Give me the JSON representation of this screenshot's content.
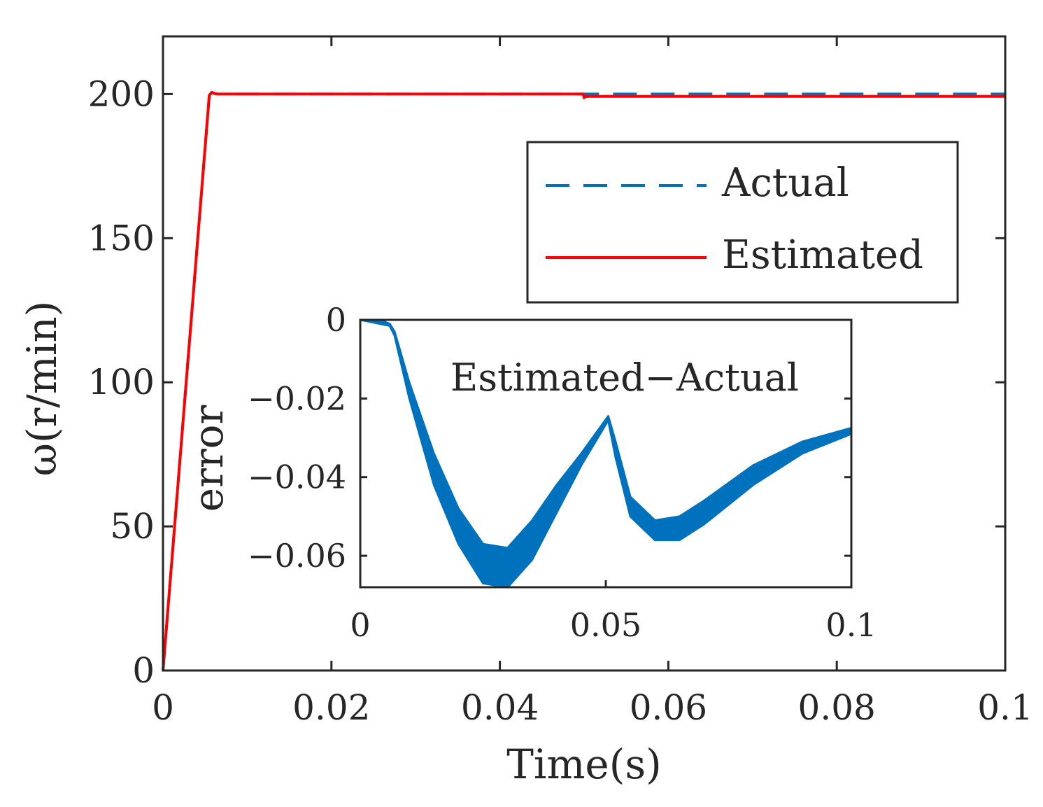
{
  "chart_data": [
    {
      "type": "line",
      "xlabel": "Time(s)",
      "ylabel": "ω(r/min)",
      "xlim": [
        0,
        0.1
      ],
      "ylim": [
        0,
        220
      ],
      "xticks": [
        "0",
        "0.02",
        "0.04",
        "0.06",
        "0.08",
        "0.1"
      ],
      "xtick_values": [
        0,
        0.02,
        0.04,
        0.06,
        0.08,
        0.1
      ],
      "yticks": [
        "0",
        "50",
        "100",
        "150",
        "200"
      ],
      "ytick_values": [
        0,
        50,
        100,
        150,
        200
      ],
      "grid": false,
      "legend": "top-right",
      "series": [
        {
          "name": "Actual",
          "color": "#0072BD",
          "style": "dashed",
          "x": [
            0,
            0.0055,
            0.0058,
            0.0062,
            0.0065,
            0.05,
            0.1
          ],
          "y": [
            0,
            199.5,
            200.6,
            200.1,
            200,
            200,
            200
          ]
        },
        {
          "name": "Estimated",
          "color": "#FF0000",
          "style": "solid",
          "x": [
            0,
            0.0055,
            0.0058,
            0.0062,
            0.0065,
            0.0499,
            0.05,
            0.0501,
            0.0503,
            0.0505,
            0.1
          ],
          "y": [
            0,
            199.5,
            200.6,
            200.1,
            200,
            200,
            198.7,
            199.3,
            199.1,
            199.2,
            199.2
          ]
        }
      ]
    },
    {
      "type": "area",
      "title": "Estimated−Actual",
      "ylabel": "error",
      "xlim": [
        0,
        0.1
      ],
      "ylim": [
        -0.068,
        0
      ],
      "xticks": [
        "0",
        "0.05",
        "0.1"
      ],
      "xtick_values": [
        0,
        0.05,
        0.1
      ],
      "yticks": [
        "0",
        "−0.02",
        "−0.04",
        "−0.06"
      ],
      "ytick_values": [
        0,
        -0.02,
        -0.04,
        -0.06
      ],
      "series": [
        {
          "name": "error",
          "color": "#0072BD",
          "x": [
            0,
            0.002,
            0.004,
            0.006,
            0.007,
            0.01,
            0.015,
            0.02,
            0.025,
            0.03,
            0.035,
            0.04,
            0.045,
            0.0505,
            0.052,
            0.055,
            0.06,
            0.065,
            0.07,
            0.08,
            0.09,
            0.1
          ],
          "upper": [
            0,
            0,
            0,
            -0.001,
            -0.003,
            -0.016,
            -0.034,
            -0.048,
            -0.057,
            -0.058,
            -0.051,
            -0.042,
            -0.034,
            -0.0245,
            -0.031,
            -0.045,
            -0.051,
            -0.05,
            -0.046,
            -0.037,
            -0.031,
            -0.0275
          ],
          "lower": [
            0,
            -0.0005,
            -0.001,
            -0.0015,
            -0.004,
            -0.02,
            -0.042,
            -0.057,
            -0.067,
            -0.068,
            -0.061,
            -0.049,
            -0.037,
            -0.0255,
            -0.035,
            -0.05,
            -0.056,
            -0.056,
            -0.052,
            -0.042,
            -0.034,
            -0.029
          ]
        }
      ]
    }
  ]
}
